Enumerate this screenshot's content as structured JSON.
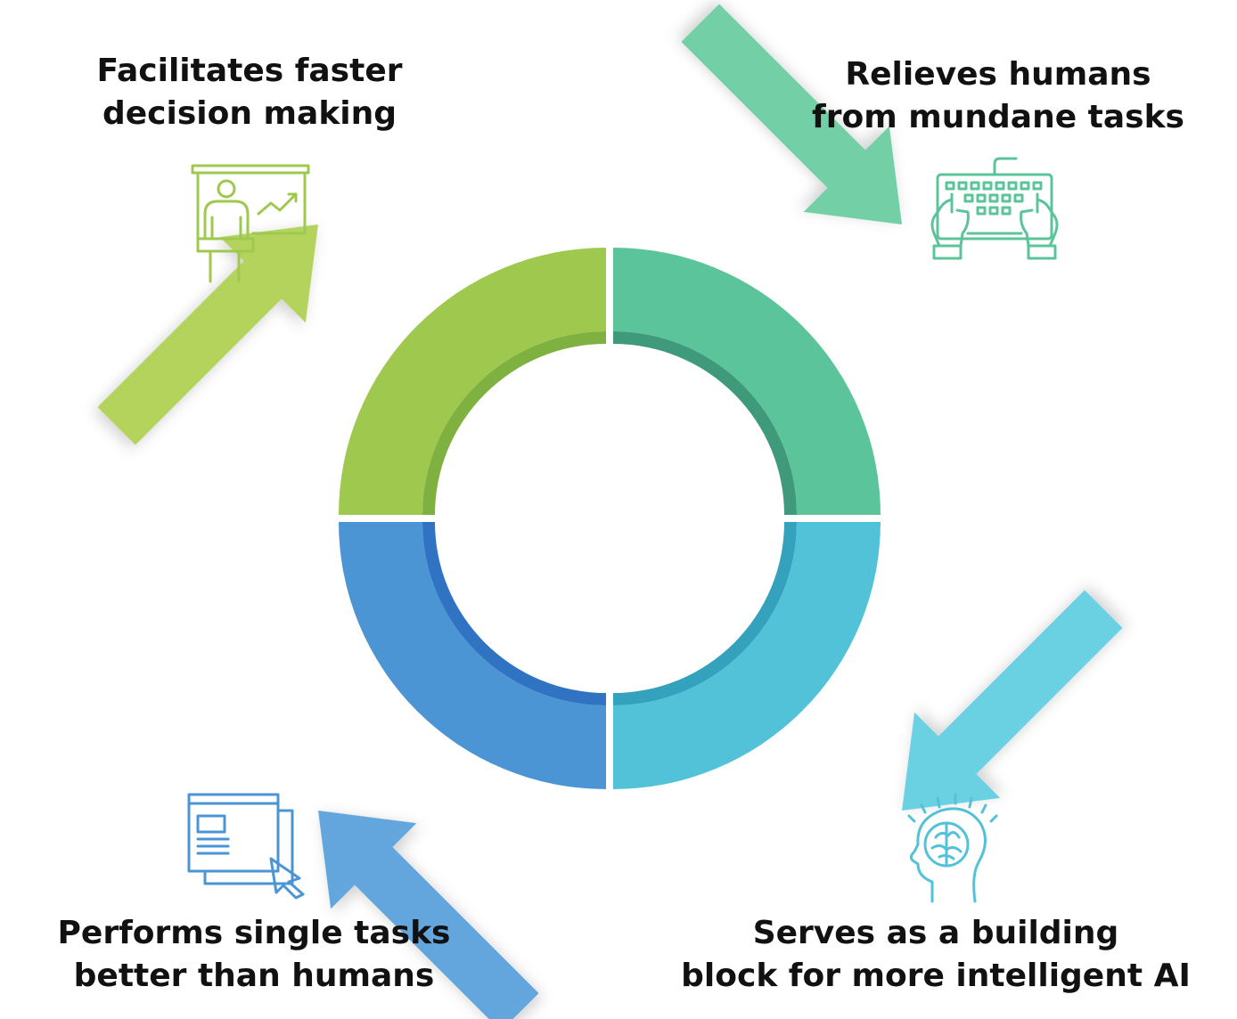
{
  "segments": [
    {
      "id": "top-left",
      "label_lines": [
        "Facilitates faster",
        "decision making"
      ],
      "icon": "presentation-chart-icon",
      "color": "#9fc94e",
      "color_light": "#b3d35b",
      "color_dark": "#7fb140"
    },
    {
      "id": "top-right",
      "label_lines": [
        "Relieves humans",
        "from mundane tasks"
      ],
      "icon": "keyboard-hands-icon",
      "color": "#5cc49b",
      "color_light": "#72cfa6",
      "color_dark": "#3e9a7a"
    },
    {
      "id": "bottom-left",
      "label_lines": [
        "Performs single tasks",
        "better than humans"
      ],
      "icon": "window-cursor-icon",
      "color": "#4c95d4",
      "color_light": "#63a6de",
      "color_dark": "#2f73c2"
    },
    {
      "id": "bottom-right",
      "label_lines": [
        "Serves as a building",
        "block for more intelligent AI"
      ],
      "icon": "brain-head-icon",
      "color": "#52c2d8",
      "color_light": "#6ad1e3",
      "color_dark": "#34a1bd"
    }
  ]
}
